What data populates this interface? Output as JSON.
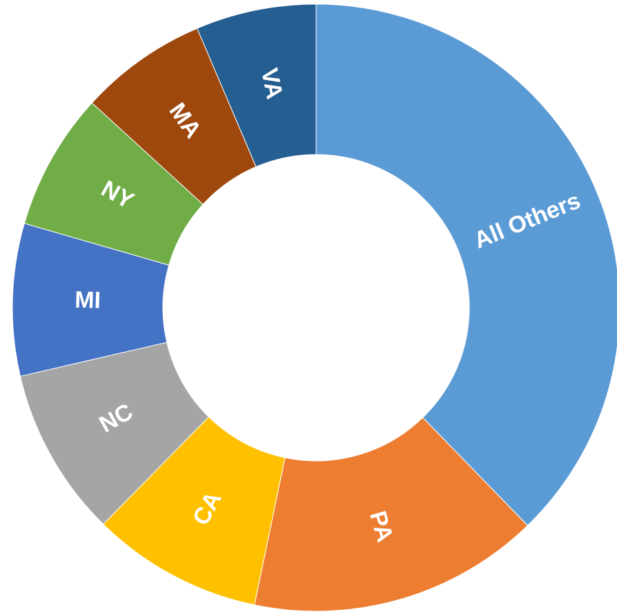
{
  "chart_data": {
    "type": "donut",
    "categories": [
      "All Others",
      "PA",
      "CA",
      "NC",
      "MI",
      "NY",
      "MA",
      "VA"
    ],
    "values": [
      37.7,
      15.5,
      9.1,
      9.0,
      8.1,
      7.3,
      6.8,
      6.4
    ],
    "colors": [
      "#5b9bd5",
      "#ed7d31",
      "#ffc000",
      "#a5a5a5",
      "#4472c4",
      "#70ad47",
      "#9e480e",
      "#255e91"
    ]
  }
}
